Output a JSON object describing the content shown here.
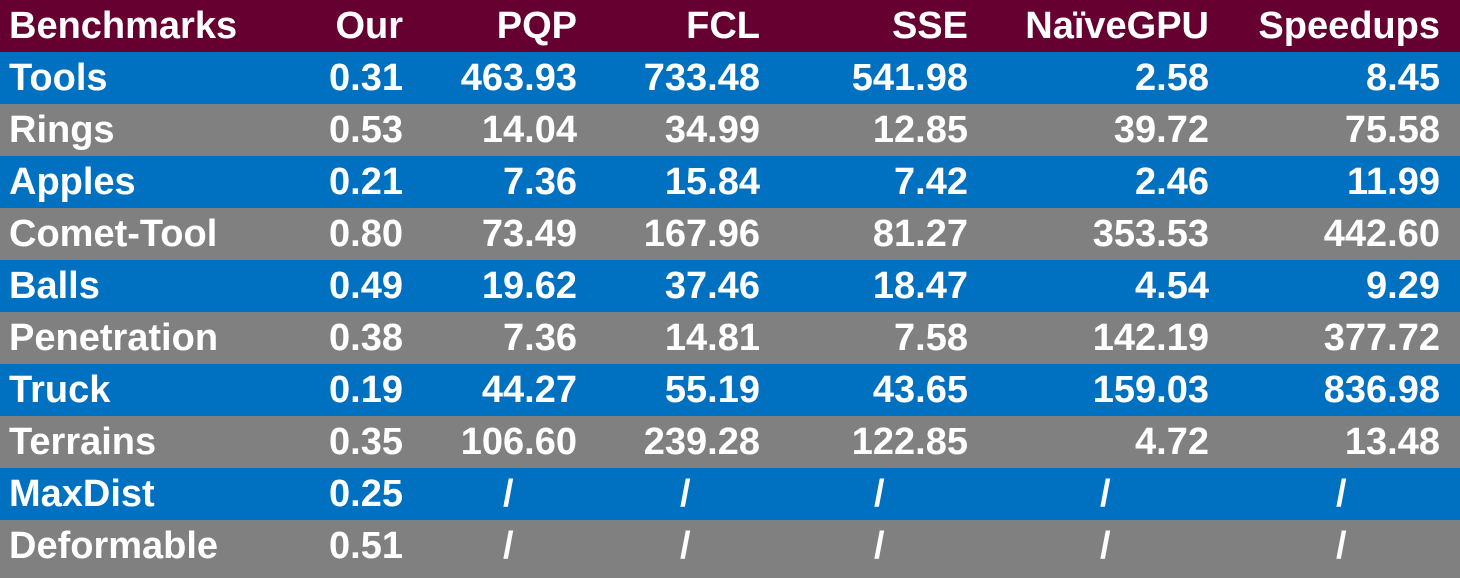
{
  "colors": {
    "header_bg": "#650030",
    "row_blue": "#0070C0",
    "row_gray": "#808080",
    "text": "#FFFFFF"
  },
  "header": [
    "Benchmarks",
    "Our",
    "PQP",
    "FCL",
    "SSE",
    "NaïveGPU",
    "Speedups"
  ],
  "rows": [
    [
      "Tools",
      "0.31",
      "463.93",
      "733.48",
      "541.98",
      "2.58",
      "8.45"
    ],
    [
      "Rings",
      "0.53",
      "14.04",
      "34.99",
      "12.85",
      "39.72",
      "75.58"
    ],
    [
      "Apples",
      "0.21",
      "7.36",
      "15.84",
      "7.42",
      "2.46",
      "11.99"
    ],
    [
      "Comet-Tool",
      "0.80",
      "73.49",
      "167.96",
      "81.27",
      "353.53",
      "442.60"
    ],
    [
      "Balls",
      "0.49",
      "19.62",
      "37.46",
      "18.47",
      "4.54",
      "9.29"
    ],
    [
      "Penetration",
      "0.38",
      "7.36",
      "14.81",
      "7.58",
      "142.19",
      "377.72"
    ],
    [
      "Truck",
      "0.19",
      "44.27",
      "55.19",
      "43.65",
      "159.03",
      "836.98"
    ],
    [
      "Terrains",
      "0.35",
      "106.60",
      "239.28",
      "122.85",
      "4.72",
      "13.48"
    ],
    [
      "MaxDist",
      "0.25",
      "/",
      "/",
      "/",
      "/",
      "/"
    ],
    [
      "Deformable",
      "0.51",
      "/",
      "/",
      "/",
      "/",
      "/"
    ]
  ]
}
